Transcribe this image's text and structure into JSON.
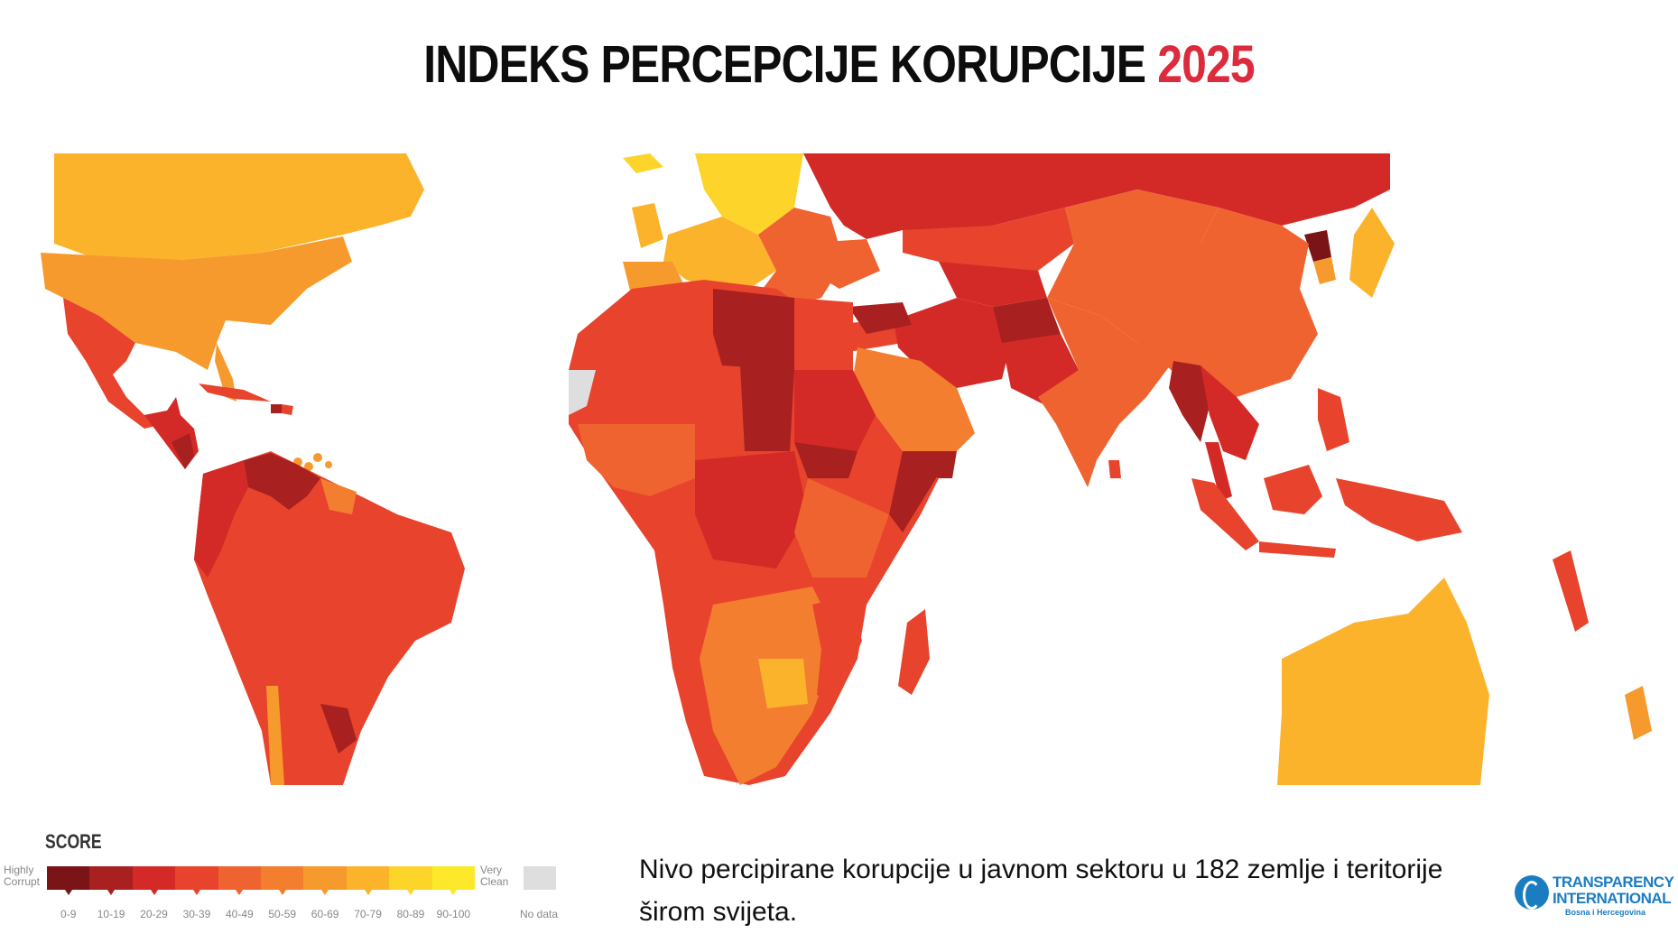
{
  "title": {
    "main": "INDEKS  PERCEPCIJE KORUPCIJE",
    "year": "2025"
  },
  "colors": {
    "title_accent": "#dc2b3c",
    "scale": [
      "#7a1417",
      "#a8201f",
      "#d42a27",
      "#e8432c",
      "#ef6330",
      "#f37e30",
      "#f79a2e",
      "#fbb32c",
      "#fcd42a",
      "#fde82a"
    ],
    "no_data": "#dedede"
  },
  "legend": {
    "title": "SCORE",
    "left_label": "Highly Corrupt",
    "right_label": "Very Clean",
    "ranges": [
      "0-9",
      "10-19",
      "20-29",
      "30-39",
      "40-49",
      "50-59",
      "60-69",
      "70-79",
      "80-89",
      "90-100"
    ],
    "no_data_label": "No data"
  },
  "caption": "Nivo percipirane korupcije u javnom sektoru u 182 zemlje i teritorije širom svijeta.",
  "logo": {
    "line1": "TRANSPARENCY",
    "line2": "INTERNATIONAL",
    "line3": "Bosna i Hercegovina",
    "icon": "globe-icon"
  }
}
